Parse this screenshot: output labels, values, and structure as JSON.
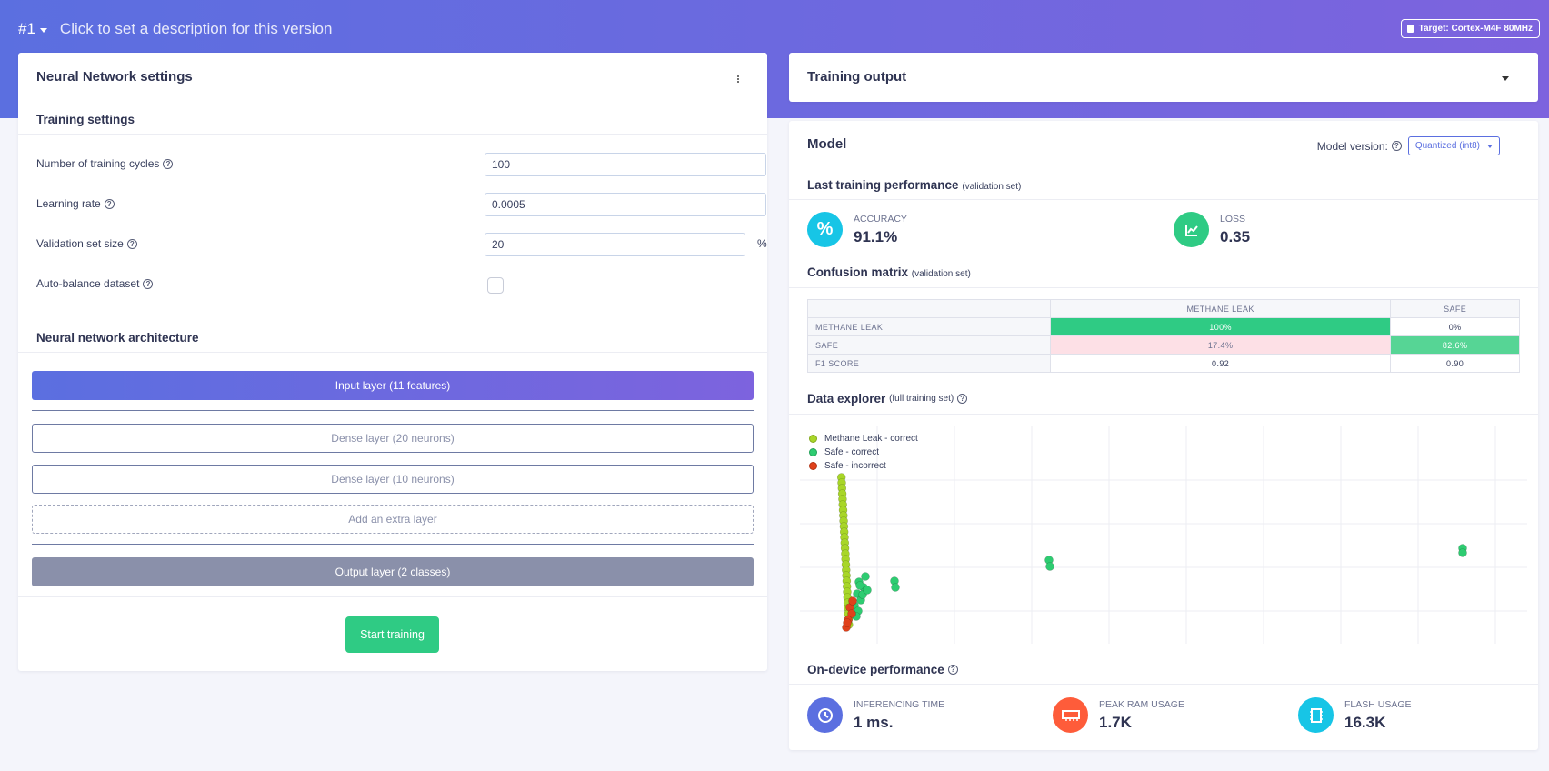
{
  "header": {
    "version": "#1",
    "description_placeholder": "Click to set a description for this version",
    "target": "Target: Cortex-M4F 80MHz"
  },
  "nn_settings": {
    "title": "Neural Network settings",
    "training_settings_title": "Training settings",
    "fields": {
      "cycles_label": "Number of training cycles",
      "cycles_value": "100",
      "lr_label": "Learning rate",
      "lr_value": "0.0005",
      "val_label": "Validation set size",
      "val_value": "20",
      "val_unit": "%",
      "autobalance_label": "Auto-balance dataset",
      "autobalance_checked": false
    },
    "architecture_title": "Neural network architecture",
    "layers": {
      "input": "Input layer (11 features)",
      "dense1": "Dense layer (20 neurons)",
      "dense2": "Dense layer (10 neurons)",
      "add": "Add an extra layer",
      "output": "Output layer (2 classes)"
    },
    "start_button": "Start training"
  },
  "training_output": {
    "title": "Training output"
  },
  "model": {
    "title": "Model",
    "version_label": "Model version:",
    "version_value": "Quantized (int8)",
    "last_perf_title": "Last training performance",
    "last_perf_note": "(validation set)",
    "accuracy_label": "ACCURACY",
    "accuracy_value": "91.1%",
    "loss_label": "LOSS",
    "loss_value": "0.35",
    "confusion_title": "Confusion matrix",
    "confusion_note": "(validation set)",
    "confusion": {
      "columns": [
        "METHANE LEAK",
        "SAFE"
      ],
      "rows": [
        {
          "label": "METHANE LEAK",
          "cells": [
            "100%",
            "0%"
          ]
        },
        {
          "label": "SAFE",
          "cells": [
            "17.4%",
            "82.6%"
          ]
        },
        {
          "label": "F1 SCORE",
          "cells": [
            "0.92",
            "0.90"
          ]
        }
      ]
    },
    "explorer_title": "Data explorer",
    "explorer_note": "(full training set)",
    "legend": [
      {
        "label": "Methane Leak - correct",
        "color": "#a8d628"
      },
      {
        "label": "Safe - correct",
        "color": "#2ecc71"
      },
      {
        "label": "Safe - incorrect",
        "color": "#e0411b"
      }
    ],
    "ondevice_title": "On-device performance",
    "inferencing_label": "INFERENCING TIME",
    "inferencing_value": "1 ms.",
    "ram_label": "PEAK RAM USAGE",
    "ram_value": "1.7K",
    "flash_label": "FLASH USAGE",
    "flash_value": "16.3K"
  },
  "colors": {
    "accent": "#5b6fe0",
    "accent2": "#7d63de",
    "green": "#2fcb84",
    "cyan": "#17c5e6",
    "orange": "#fe5c3a"
  }
}
